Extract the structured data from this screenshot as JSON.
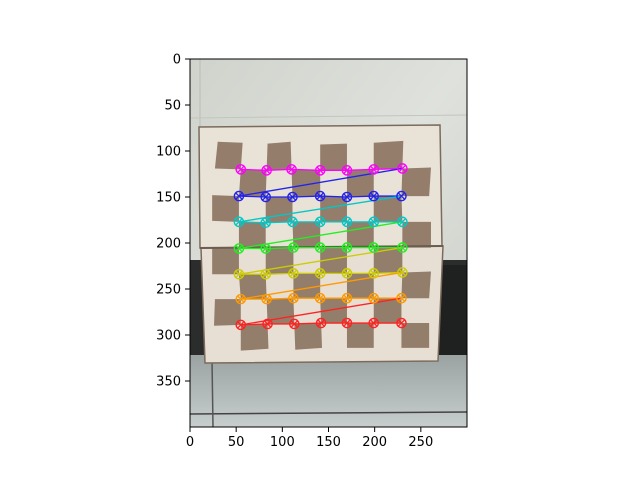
{
  "figure": {
    "description_free": true,
    "x_axis": {
      "ticks": [
        0,
        50,
        100,
        150,
        200,
        250
      ],
      "range": [
        0,
        300
      ]
    },
    "y_axis": {
      "ticks": [
        0,
        50,
        100,
        150,
        200,
        250,
        300,
        350
      ],
      "range": [
        0,
        400
      ],
      "inverted": true
    }
  },
  "board": {
    "rows": 7,
    "cols": 7,
    "row_colors": [
      "#ff00ff",
      "#2222ee",
      "#00c8c8",
      "#22ee22",
      "#cccc00",
      "#ff9900",
      "#ff2222"
    ],
    "corners": [
      [
        [
          55,
          120
        ],
        [
          83,
          121
        ],
        [
          110,
          120
        ],
        [
          141,
          121
        ],
        [
          170,
          121
        ],
        [
          199,
          120
        ],
        [
          230,
          119
        ]
      ],
      [
        [
          53,
          149
        ],
        [
          82,
          150
        ],
        [
          111,
          150
        ],
        [
          141,
          149
        ],
        [
          170,
          150
        ],
        [
          199,
          149
        ],
        [
          229,
          149
        ]
      ],
      [
        [
          53,
          177
        ],
        [
          82,
          178
        ],
        [
          111,
          177
        ],
        [
          141,
          177
        ],
        [
          170,
          177
        ],
        [
          199,
          177
        ],
        [
          230,
          177
        ]
      ],
      [
        [
          53,
          206
        ],
        [
          82,
          206
        ],
        [
          112,
          205
        ],
        [
          141,
          205
        ],
        [
          170,
          205
        ],
        [
          199,
          205
        ],
        [
          230,
          205
        ]
      ],
      [
        [
          53,
          234
        ],
        [
          82,
          234
        ],
        [
          112,
          233
        ],
        [
          141,
          233
        ],
        [
          170,
          233
        ],
        [
          199,
          233
        ],
        [
          230,
          232
        ]
      ],
      [
        [
          55,
          261
        ],
        [
          83,
          261
        ],
        [
          112,
          260
        ],
        [
          141,
          260
        ],
        [
          170,
          260
        ],
        [
          199,
          260
        ],
        [
          229,
          260
        ]
      ],
      [
        [
          55,
          289
        ],
        [
          84,
          288
        ],
        [
          113,
          288
        ],
        [
          142,
          287
        ],
        [
          170,
          287
        ],
        [
          199,
          287
        ],
        [
          229,
          287
        ]
      ]
    ]
  }
}
